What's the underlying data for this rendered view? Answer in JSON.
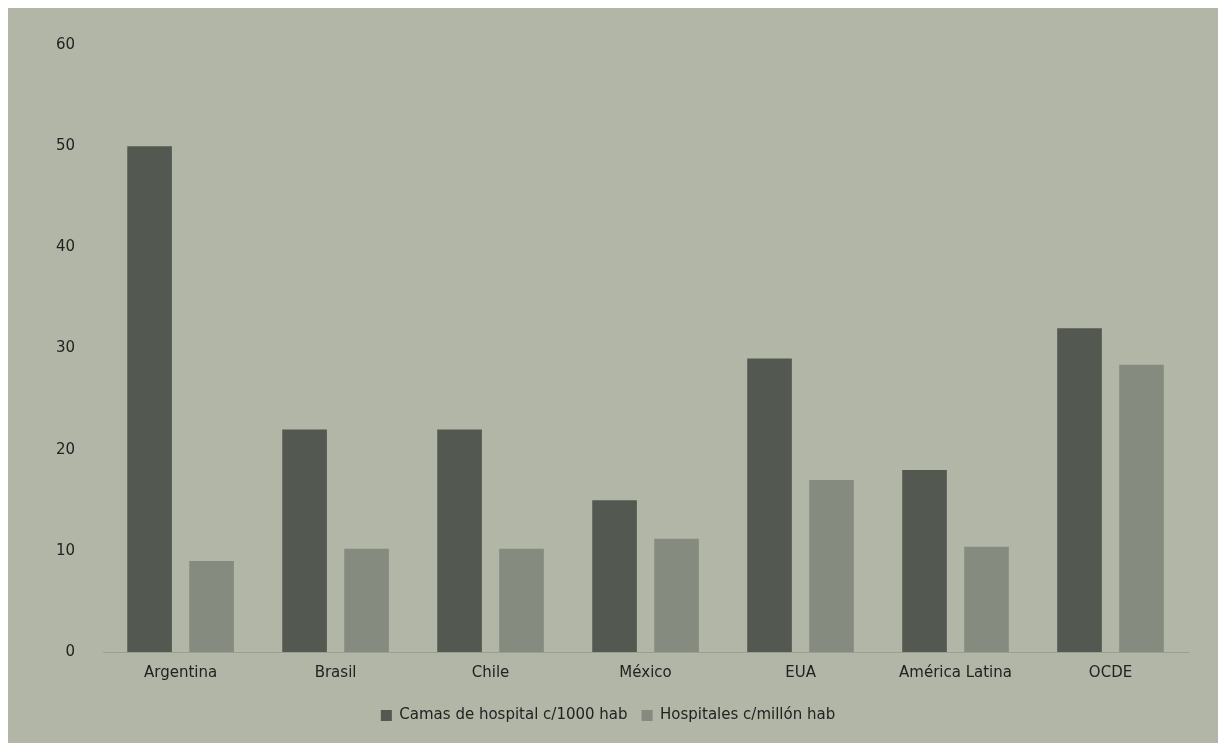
{
  "chart_data": {
    "type": "bar",
    "categories": [
      "Argentina",
      "Brasil",
      "Chile",
      "México",
      "EUA",
      "América Latina",
      "OCDE"
    ],
    "series": [
      {
        "name": "Camas de hospital c/1000 hab",
        "color": "#535850",
        "values": [
          50,
          22,
          22,
          15,
          29,
          18,
          32
        ]
      },
      {
        "name": "Hospitales c/millón hab",
        "color": "#868b80",
        "values": [
          9,
          10.2,
          10.2,
          11.2,
          17,
          10.4,
          28.4
        ]
      }
    ],
    "ylim": [
      0,
      60
    ],
    "yticks": [
      0,
      10,
      20,
      30,
      40,
      50,
      60
    ],
    "grid": false,
    "legend": "bottom"
  }
}
